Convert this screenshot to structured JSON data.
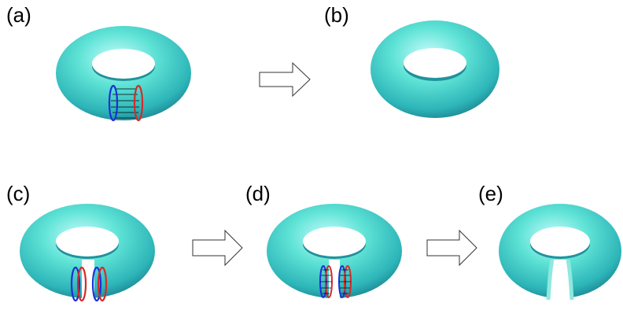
{
  "panels": [
    {
      "id": "a",
      "label": "(a)",
      "description_marks": [
        "torus",
        "blue-ring",
        "red-ring",
        "connector-lines"
      ]
    },
    {
      "id": "b",
      "label": "(b)",
      "description_marks": [
        "torus"
      ]
    },
    {
      "id": "c",
      "label": "(c)",
      "description_marks": [
        "torus",
        "blue-ring",
        "red-ring",
        "blue-ring",
        "red-ring"
      ]
    },
    {
      "id": "d",
      "label": "(d)",
      "description_marks": [
        "torus",
        "ring-pair-meshed",
        "ring-pair-meshed"
      ]
    },
    {
      "id": "e",
      "label": "(e)",
      "description_marks": [
        "cut-torus"
      ]
    }
  ],
  "arrows": [
    {
      "from": "a",
      "to": "b",
      "icon": "right-arrow-outline"
    },
    {
      "from": "c",
      "to": "d",
      "icon": "right-arrow-outline"
    },
    {
      "from": "d",
      "to": "e",
      "icon": "right-arrow-outline"
    }
  ],
  "colors": {
    "torus_light": "#b8f6f6",
    "torus_mid": "#4fd9cf",
    "torus_dark": "#1b8f9a",
    "ring_blue": "#1c2fd6",
    "ring_red": "#d62a2a",
    "mesh_black": "#000000",
    "arrow_stroke": "#333333"
  }
}
